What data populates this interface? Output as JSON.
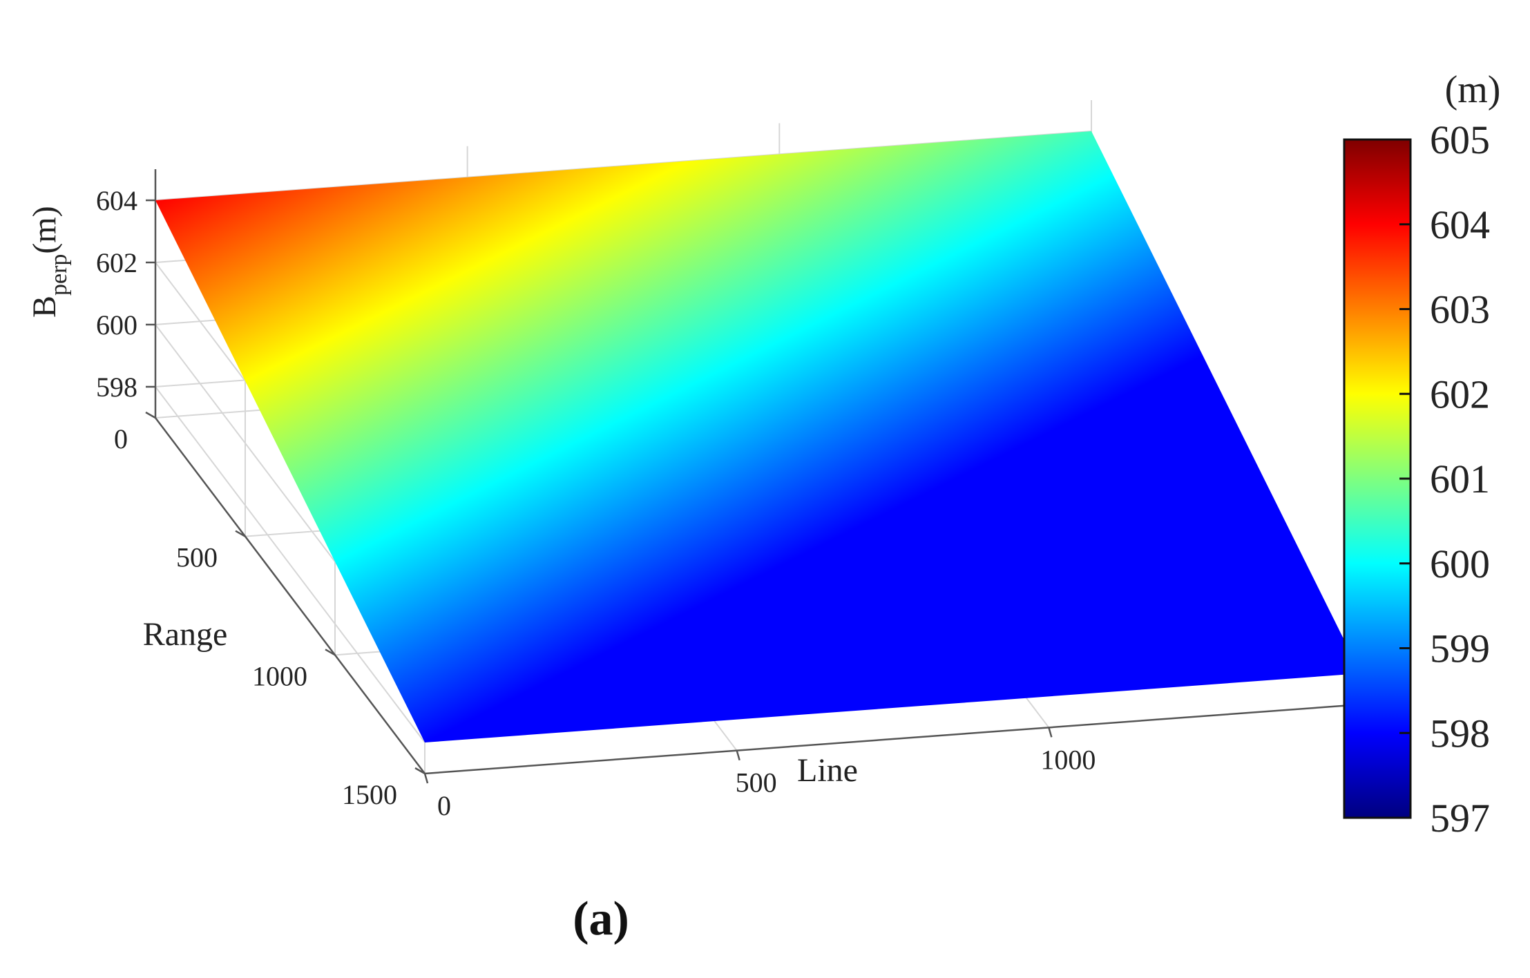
{
  "panel_label": "(a)",
  "chart_data": {
    "type": "surface",
    "title": "",
    "view": "3d-oblique",
    "grid": true,
    "x_axis": {
      "label": "Line",
      "range": [
        0,
        1500
      ],
      "ticks": [
        0,
        500,
        1000
      ]
    },
    "y_axis": {
      "label": "Range",
      "range": [
        0,
        1500
      ],
      "ticks": [
        0,
        500,
        1000,
        1500
      ]
    },
    "z_axis": {
      "label_main": "B",
      "label_sub": "perp",
      "label_unit": "(m)",
      "range": [
        597,
        605
      ],
      "ticks": [
        598,
        600,
        602,
        604
      ]
    },
    "surface": {
      "description_values": "planar surface varying linearly with Range",
      "z_at_range_min": 604,
      "z_at_range_max": 598
    },
    "colorbar": {
      "unit": "(m)",
      "min": 597,
      "max": 605,
      "ticks": [
        605,
        604,
        603,
        602,
        601,
        600,
        599,
        598,
        597
      ],
      "colormap": "jet",
      "stops": [
        "#00007f",
        "#0000ff",
        "#007fff",
        "#00ffff",
        "#7fff7f",
        "#ffff00",
        "#ff7f00",
        "#ff0000",
        "#7f0000"
      ]
    }
  }
}
